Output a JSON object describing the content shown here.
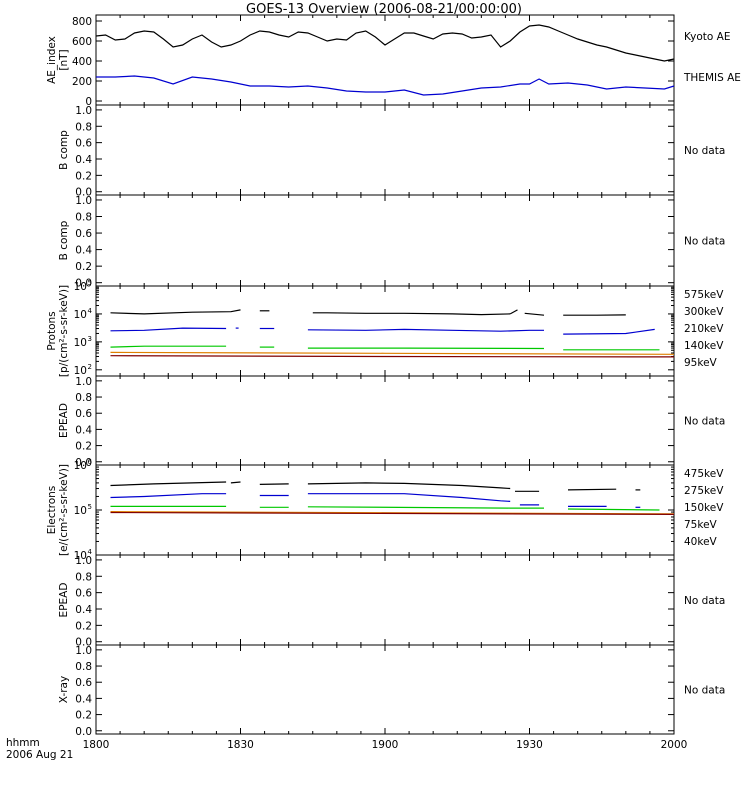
{
  "title": "GOES-13 Overview (2006-08-21/00:00:00)",
  "x_axis": {
    "ticks": [
      "1800",
      "1830",
      "1900",
      "1930",
      "2000"
    ],
    "corner_label_1": "hhmm",
    "corner_label_2": "2006 Aug 21"
  },
  "panels": [
    {
      "id": "ae",
      "ylabel": [
        "AE_index",
        "[nT]"
      ],
      "yticks": [
        "800",
        "600",
        "400",
        "200",
        "0"
      ],
      "side_labels": [
        {
          "text": "Kyoto AE",
          "color": "#000000"
        },
        {
          "text": "THEMIS AE",
          "color": "#0000d0"
        }
      ]
    },
    {
      "id": "bcomp1",
      "ylabel": [
        "B comp"
      ],
      "yticks": [
        "1.0",
        "0.8",
        "0.6",
        "0.4",
        "0.2",
        "0.0"
      ],
      "side_labels": [
        {
          "text": "No data",
          "color": "#000000"
        }
      ]
    },
    {
      "id": "bcomp2",
      "ylabel": [
        "B comp"
      ],
      "yticks": [
        "1.0",
        "0.8",
        "0.6",
        "0.4",
        "0.2",
        "0.0"
      ],
      "side_labels": [
        {
          "text": "No data",
          "color": "#000000"
        }
      ]
    },
    {
      "id": "protons",
      "ylabel": [
        "Protons",
        "[p/(cm²-s-sr-keV)]"
      ],
      "yticks": [
        "10",
        "10",
        "10",
        "10",
        "10"
      ],
      "ytick_exponents": [
        "5",
        "4",
        "3",
        "2",
        ""
      ],
      "side_labels": [
        {
          "text": "575keV",
          "color": "#800000"
        },
        {
          "text": "300keV",
          "color": "#e08000"
        },
        {
          "text": "210keV",
          "color": "#00c800"
        },
        {
          "text": "140keV",
          "color": "#0000d0"
        },
        {
          "text": "95keV",
          "color": "#000000"
        }
      ]
    },
    {
      "id": "epead1",
      "ylabel": [
        "EPEAD"
      ],
      "yticks": [
        "1.0",
        "0.8",
        "0.6",
        "0.4",
        "0.2",
        "0.0"
      ],
      "side_labels": [
        {
          "text": "No data",
          "color": "#000000"
        }
      ]
    },
    {
      "id": "electrons",
      "ylabel": [
        "Electrons",
        "[e/(cm²-s-sr-keV)]"
      ],
      "yticks": [
        "10",
        "10",
        "10"
      ],
      "ytick_exponents": [
        "6",
        "5",
        "4"
      ],
      "side_labels": [
        {
          "text": "475keV",
          "color": "#800000"
        },
        {
          "text": "275keV",
          "color": "#e08000"
        },
        {
          "text": "150keV",
          "color": "#00c800"
        },
        {
          "text": "75keV",
          "color": "#0000d0"
        },
        {
          "text": "40keV",
          "color": "#000000"
        }
      ]
    },
    {
      "id": "epead2",
      "ylabel": [
        "EPEAD"
      ],
      "yticks": [
        "1.0",
        "0.8",
        "0.6",
        "0.4",
        "0.2",
        "0.0"
      ],
      "side_labels": [
        {
          "text": "No data",
          "color": "#000000"
        }
      ]
    },
    {
      "id": "xray",
      "ylabel": [
        "X-ray"
      ],
      "yticks": [
        "1.0",
        "0.8",
        "0.6",
        "0.4",
        "0.2",
        "0.0"
      ],
      "side_labels": [
        {
          "text": "No data",
          "color": "#000000"
        }
      ]
    }
  ],
  "chart_data": [
    {
      "type": "line",
      "panel": "ae",
      "ylabel": "AE_index [nT]",
      "x_unit": "minutes since 18:00",
      "xlim": [
        0,
        120
      ],
      "ylim": [
        0,
        800
      ],
      "series": [
        {
          "name": "Kyoto AE",
          "color": "#000000",
          "x": [
            0,
            2,
            4,
            6,
            8,
            10,
            12,
            14,
            16,
            18,
            20,
            22,
            24,
            26,
            28,
            30,
            32,
            34,
            36,
            38,
            40,
            42,
            44,
            46,
            48,
            50,
            52,
            54,
            56,
            58,
            60,
            62,
            64,
            66,
            68,
            70,
            72,
            74,
            76,
            78,
            80,
            82,
            84,
            86,
            88,
            90,
            92,
            94,
            96,
            98,
            100,
            102,
            104,
            106,
            108,
            110,
            112,
            114,
            116,
            118,
            120
          ],
          "y": [
            650,
            660,
            610,
            620,
            680,
            700,
            690,
            620,
            540,
            560,
            620,
            660,
            590,
            540,
            560,
            600,
            660,
            700,
            690,
            660,
            640,
            690,
            680,
            640,
            600,
            620,
            610,
            680,
            700,
            640,
            560,
            620,
            680,
            680,
            650,
            620,
            670,
            680,
            670,
            630,
            640,
            660,
            540,
            600,
            690,
            750,
            760,
            740,
            700,
            660,
            620,
            590,
            560,
            540,
            510,
            480,
            460,
            440,
            420,
            400,
            420
          ]
        },
        {
          "name": "THEMIS AE",
          "color": "#0000d0",
          "x": [
            0,
            4,
            8,
            12,
            16,
            20,
            24,
            28,
            32,
            36,
            40,
            44,
            48,
            52,
            56,
            60,
            64,
            68,
            72,
            76,
            80,
            84,
            88,
            90,
            92,
            94,
            98,
            102,
            106,
            110,
            114,
            118,
            120
          ],
          "y": [
            240,
            240,
            250,
            230,
            170,
            240,
            220,
            190,
            150,
            150,
            140,
            150,
            130,
            100,
            90,
            90,
            110,
            60,
            70,
            100,
            130,
            140,
            170,
            170,
            220,
            170,
            180,
            160,
            120,
            140,
            130,
            120,
            150
          ]
        }
      ]
    },
    {
      "type": "line",
      "panel": "protons",
      "ylabel": "Protons [p/(cm²-s-sr-keV)]",
      "yscale": "log",
      "ylim": [
        100,
        100000
      ],
      "x_unit": "minutes since 18:00",
      "xlim": [
        0,
        120
      ],
      "series": [
        {
          "name": "95keV",
          "color": "#000000",
          "segments": [
            {
              "x": [
                3,
                10,
                20,
                28,
                30
              ],
              "y": [
                11000,
                10000,
                11500,
                12000,
                14000
              ]
            },
            {
              "x": [
                34,
                36
              ],
              "y": [
                13000,
                13000
              ]
            },
            {
              "x": [
                45,
                48,
                56,
                64,
                74,
                80,
                86
              ],
              "y": [
                11000,
                11000,
                10500,
                10500,
                10000,
                9500,
                10000
              ]
            },
            {
              "x": [
                86,
                87.5
              ],
              "y": [
                10000,
                14000
              ]
            },
            {
              "x": [
                89,
                93
              ],
              "y": [
                10500,
                9000
              ]
            },
            {
              "x": [
                97,
                104,
                110
              ],
              "y": [
                9000,
                9000,
                9200
              ]
            }
          ]
        },
        {
          "name": "140keV",
          "color": "#0000d0",
          "segments": [
            {
              "x": [
                3,
                10,
                18,
                27
              ],
              "y": [
                2500,
                2600,
                3100,
                3000
              ]
            },
            {
              "x": [
                29,
                29.6
              ],
              "y": [
                3100,
                3100
              ]
            },
            {
              "x": [
                34,
                37
              ],
              "y": [
                3000,
                3000
              ]
            },
            {
              "x": [
                44,
                56,
                64,
                74,
                84,
                90,
                93
              ],
              "y": [
                2700,
                2600,
                2800,
                2600,
                2400,
                2600,
                2600
              ]
            },
            {
              "x": [
                97,
                110,
                116
              ],
              "y": [
                1900,
                2000,
                2800
              ]
            }
          ]
        },
        {
          "name": "210keV",
          "color": "#00c800",
          "segments": [
            {
              "x": [
                3,
                10,
                27
              ],
              "y": [
                650,
                700,
                700
              ]
            },
            {
              "x": [
                34,
                37
              ],
              "y": [
                650,
                650
              ]
            },
            {
              "x": [
                44,
                64,
                93
              ],
              "y": [
                600,
                600,
                580
              ]
            },
            {
              "x": [
                97,
                117
              ],
              "y": [
                520,
                520
              ]
            }
          ]
        },
        {
          "name": "300keV",
          "color": "#e08000",
          "segments": [
            {
              "x": [
                3,
                60,
                120
              ],
              "y": [
                420,
                390,
                360
              ]
            }
          ]
        },
        {
          "name": "575keV",
          "color": "#800000",
          "segments": [
            {
              "x": [
                3,
                60,
                120
              ],
              "y": [
                320,
                300,
                290
              ]
            }
          ]
        }
      ]
    },
    {
      "type": "line",
      "panel": "electrons",
      "ylabel": "Electrons [e/(cm²-s-sr-keV)]",
      "yscale": "log",
      "ylim": [
        10000,
        1000000
      ],
      "x_unit": "minutes since 18:00",
      "xlim": [
        0,
        120
      ],
      "series": [
        {
          "name": "40keV",
          "color": "#000000",
          "segments": [
            {
              "x": [
                3,
                12,
                20,
                27
              ],
              "y": [
                350000,
                380000,
                400000,
                420000
              ]
            },
            {
              "x": [
                28,
                30
              ],
              "y": [
                400000,
                420000
              ]
            },
            {
              "x": [
                34,
                40
              ],
              "y": [
                370000,
                380000
              ]
            },
            {
              "x": [
                44,
                56,
                64,
                76,
                84,
                86
              ],
              "y": [
                380000,
                400000,
                390000,
                350000,
                310000,
                300000
              ]
            },
            {
              "x": [
                87,
                92
              ],
              "y": [
                260000,
                260000
              ]
            },
            {
              "x": [
                98,
                108
              ],
              "y": [
                280000,
                290000
              ]
            },
            {
              "x": [
                112,
                113
              ],
              "y": [
                280000,
                280000
              ]
            }
          ]
        },
        {
          "name": "75keV",
          "color": "#0000d0",
          "segments": [
            {
              "x": [
                3,
                10,
                22,
                27
              ],
              "y": [
                190000,
                200000,
                230000,
                230000
              ]
            },
            {
              "x": [
                34,
                40
              ],
              "y": [
                210000,
                210000
              ]
            },
            {
              "x": [
                44,
                56,
                64,
                76,
                84,
                86
              ],
              "y": [
                230000,
                230000,
                230000,
                190000,
                160000,
                155000
              ]
            },
            {
              "x": [
                88,
                92
              ],
              "y": [
                130000,
                130000
              ]
            },
            {
              "x": [
                98,
                106
              ],
              "y": [
                120000,
                120000
              ]
            },
            {
              "x": [
                112,
                113
              ],
              "y": [
                115000,
                115000
              ]
            }
          ]
        },
        {
          "name": "150keV",
          "color": "#00c800",
          "segments": [
            {
              "x": [
                3,
                27
              ],
              "y": [
                120000,
                120000
              ]
            },
            {
              "x": [
                34,
                40
              ],
              "y": [
                115000,
                115000
              ]
            },
            {
              "x": [
                44,
                86,
                93
              ],
              "y": [
                118000,
                110000,
                110000
              ]
            },
            {
              "x": [
                98,
                117
              ],
              "y": [
                105000,
                100000
              ]
            }
          ]
        },
        {
          "name": "275keV",
          "color": "#e08000",
          "segments": [
            {
              "x": [
                3,
                120
              ],
              "y": [
                92000,
                82000
              ]
            }
          ]
        },
        {
          "name": "475keV",
          "color": "#800000",
          "segments": [
            {
              "x": [
                3,
                120
              ],
              "y": [
                88000,
                80000
              ]
            }
          ]
        }
      ]
    }
  ]
}
